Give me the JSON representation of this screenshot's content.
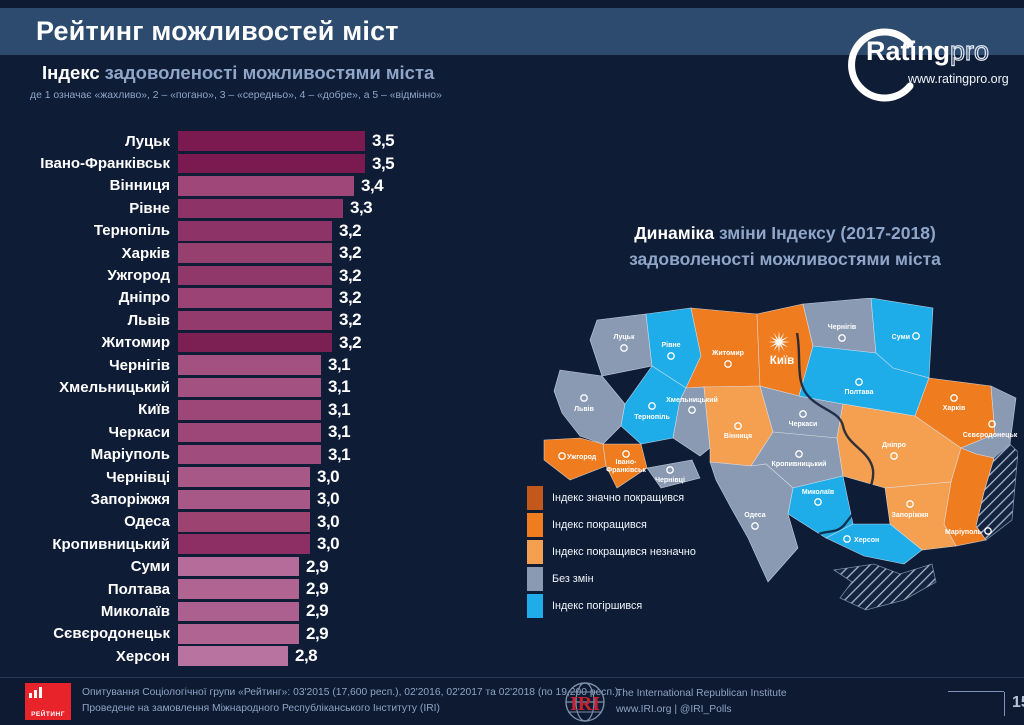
{
  "header": {
    "title": "Рейтинг можливостей міст"
  },
  "brand": {
    "name_bold": "Rating",
    "name_light": "pro",
    "url": "www.ratingpro.org"
  },
  "chart": {
    "heading_accent": "Індекс",
    "heading_rest": "задоволеності можливостями міста",
    "subtitle": "де 1 означає «жахливо», 2 – «погано», 3 – «середньо», 4 – «добре», а 5 – «відмінно»"
  },
  "chart_data": {
    "type": "bar",
    "orientation": "horizontal",
    "title": "Індекс задоволеності можливостями міста",
    "scale_note": "1 = жахливо, 5 = відмінно",
    "xlim": [
      1.8,
      3.7
    ],
    "categories": [
      "Луцьк",
      "Івано-Франківськ",
      "Вінниця",
      "Рівне",
      "Тернопіль",
      "Харків",
      "Ужгород",
      "Дніпро",
      "Львів",
      "Житомир",
      "Чернігів",
      "Хмельницький",
      "Київ",
      "Черкаси",
      "Маріуполь",
      "Чернівці",
      "Запоріжжя",
      "Одеса",
      "Кропивницький",
      "Суми",
      "Полтава",
      "Миколаїв",
      "Сєвєродонецьк",
      "Херсон"
    ],
    "values": [
      3.5,
      3.5,
      3.4,
      3.3,
      3.2,
      3.2,
      3.2,
      3.2,
      3.2,
      3.2,
      3.1,
      3.1,
      3.1,
      3.1,
      3.1,
      3.0,
      3.0,
      3.0,
      3.0,
      2.9,
      2.9,
      2.9,
      2.9,
      2.8
    ],
    "value_labels": [
      "3,5",
      "3,5",
      "3,4",
      "3,3",
      "3,2",
      "3,2",
      "3,2",
      "3,2",
      "3,2",
      "3,2",
      "3,1",
      "3,1",
      "3,1",
      "3,1",
      "3,1",
      "3,0",
      "3,0",
      "3,0",
      "3,0",
      "2,9",
      "2,9",
      "2,9",
      "2,9",
      "2,8"
    ],
    "bar_colors": [
      "#7a1a50",
      "#7a1a50",
      "#9f4779",
      "#8e3367",
      "#8e3367",
      "#964070",
      "#91386b",
      "#9c4376",
      "#933b6d",
      "#7c2054",
      "#a35180",
      "#a35180",
      "#9c4778",
      "#9c4778",
      "#a04d7d",
      "#a75886",
      "#a75886",
      "#9c4372",
      "#8d2f64",
      "#b56c9b",
      "#af6492",
      "#ac6090",
      "#af6492",
      "#b873a0"
    ]
  },
  "map": {
    "title_accent": "Динаміка",
    "title_rest": "зміни Індексу (2017-2018)",
    "title_line2": "задоволеності можливостями міста",
    "hatch_color": "#a9b7ca",
    "legend": [
      {
        "key": "improved_strongly",
        "label": "Індекс значно покращився",
        "color": "#c2591b"
      },
      {
        "key": "improved",
        "label": "Індекс покращився",
        "color": "#f07c20"
      },
      {
        "key": "improved_slightly",
        "label": "Індекс покращився незначно",
        "color": "#f5a050"
      },
      {
        "key": "no_change",
        "label": "Без змін",
        "color": "#8b9ab3"
      },
      {
        "key": "worsened",
        "label": "Індекс погіршився",
        "color": "#1fadea"
      }
    ],
    "regions": [
      {
        "id": "volyn",
        "city": "Луцьк",
        "status": "no_change"
      },
      {
        "id": "rivne",
        "city": "Рівне",
        "status": "worsened"
      },
      {
        "id": "zhytomyr",
        "city": "Житомир",
        "status": "improved"
      },
      {
        "id": "kyiv",
        "city": "Київ",
        "status": "improved",
        "capital": true
      },
      {
        "id": "chernihiv",
        "city": "Чернігів",
        "status": "no_change"
      },
      {
        "id": "sumy",
        "city": "Суми",
        "status": "worsened"
      },
      {
        "id": "lviv",
        "city": "Львів",
        "status": "no_change"
      },
      {
        "id": "ternopil",
        "city": "Тернопіль",
        "status": "worsened"
      },
      {
        "id": "khmelnytskyi",
        "city": "Хмельницький",
        "status": "no_change"
      },
      {
        "id": "vinnytsia",
        "city": "Вінниця",
        "status": "improved_slightly"
      },
      {
        "id": "cherkasy",
        "city": "Черкаси",
        "status": "no_change"
      },
      {
        "id": "poltava",
        "city": "Полтава",
        "status": "worsened"
      },
      {
        "id": "kharkiv",
        "city": "Харків",
        "status": "improved"
      },
      {
        "id": "zakarpattia",
        "city": "Ужгород",
        "status": "improved"
      },
      {
        "id": "ivano",
        "city": "Івано-Франківськ",
        "status": "improved"
      },
      {
        "id": "chernivtsi",
        "city": "Чернівці",
        "status": "no_change"
      },
      {
        "id": "kropyvnytskyi",
        "city": "Кропивницький",
        "status": "no_change"
      },
      {
        "id": "dnipro",
        "city": "Дніпро",
        "status": "improved_slightly"
      },
      {
        "id": "luhansk",
        "city": "Сєвєродонецьк",
        "status": "no_change"
      },
      {
        "id": "donbas_occ",
        "city": "",
        "status": "occupied"
      },
      {
        "id": "donetsk",
        "city": "Маріуполь",
        "status": "improved"
      },
      {
        "id": "zaporizhzhia",
        "city": "Запоріжжя",
        "status": "improved_slightly"
      },
      {
        "id": "mykolaiv",
        "city": "Миколаїв",
        "status": "worsened"
      },
      {
        "id": "odesa",
        "city": "Одеса",
        "status": "no_change"
      },
      {
        "id": "kherson",
        "city": "Херсон",
        "status": "worsened"
      },
      {
        "id": "crimea",
        "city": "",
        "status": "occupied"
      }
    ]
  },
  "footer": {
    "line1": "Опитування Соціологічної групи «Рейтинг»: 03'2015 (17,600 респ.), 02'2016, 02'2017 та 02'2018 (по 19,200 респ.).",
    "line2": "Проведене на замовлення Міжнародного Республіканського Інституту (IRI)",
    "rating_logo_text": "РЕЙТИНГ",
    "iri_logo_text": "IRI",
    "iri_name": "The International Republican Institute",
    "iri_contacts": "www.IRI.org | @IRI_Polls",
    "page_number": "15"
  }
}
